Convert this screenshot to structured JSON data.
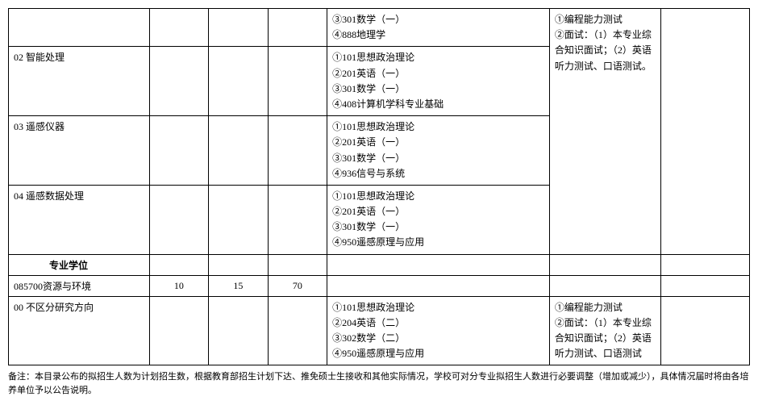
{
  "rows": {
    "row0_exam": "③301数学（一）\n④888地理学",
    "row1": {
      "dir": "02 智能处理",
      "exam": "①101思想政治理论\n②201英语（一）\n③301数学（一）\n④408计算机学科专业基础"
    },
    "row2": {
      "dir": "03 遥感仪器",
      "exam": "①101思想政治理论\n②201英语（一）\n③301数学（一）\n④936信号与系统"
    },
    "row3": {
      "dir": "04 遥感数据处理",
      "exam": "①101思想政治理论\n②201英语（一）\n③301数学（一）\n④950遥感原理与应用"
    },
    "merged_right": "①编程能力测试\n②面试：（1）本专业综合知识面试；（2）英语听力测试、口语测试。",
    "section_header": "专业学位",
    "row5": {
      "dir": "085700资源与环境",
      "n1": "10",
      "n2": "15",
      "n3": "70"
    },
    "row6": {
      "dir": "00 不区分研究方向",
      "exam": "①101思想政治理论\n②204英语（二）\n③302数学（二）\n④950遥感原理与应用",
      "right": "①编程能力测试\n②面试：（1）本专业综合知识面试；（2）英语听力测试、口语测试"
    }
  },
  "note": "备注：本目录公布的拟招生人数为计划招生数，根据教育部招生计划下达、推免硕士生接收和其他实际情况，学校可对分专业拟招生人数进行必要调整（增加或减少），具体情况届时将由各培养单位予以公告说明。"
}
